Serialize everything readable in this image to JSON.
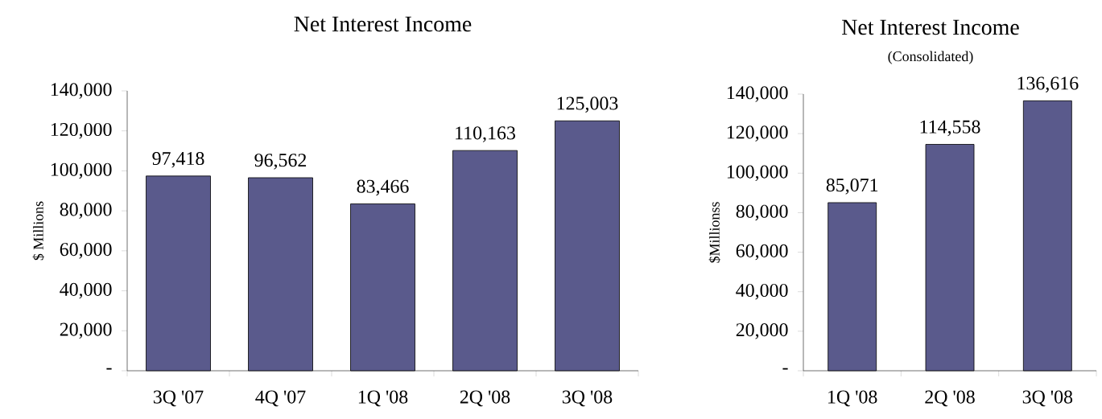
{
  "chart_data": [
    {
      "type": "bar",
      "title": "Net Interest Income",
      "ylabel": "$ Millions",
      "categories": [
        "3Q '07",
        "4Q '07",
        "1Q '08",
        "2Q '08",
        "3Q '08"
      ],
      "values": [
        97418,
        96562,
        83466,
        110163,
        125003
      ],
      "value_labels": [
        "97,418",
        "96,562",
        "83,466",
        "110,163",
        "125,003"
      ],
      "color": "#5a5a8c",
      "ylim": [
        0,
        140000
      ],
      "yticks": [
        {
          "value": 0,
          "label": "-"
        },
        {
          "value": 20000,
          "label": "20,000"
        },
        {
          "value": 40000,
          "label": "40,000"
        },
        {
          "value": 60000,
          "label": "60,000"
        },
        {
          "value": 80000,
          "label": "80,000"
        },
        {
          "value": 100000,
          "label": "100,000"
        },
        {
          "value": 120000,
          "label": "120,000"
        },
        {
          "value": 140000,
          "label": "140,000"
        }
      ]
    },
    {
      "type": "bar",
      "title": "Net Interest Income",
      "subtitle": "(Consolidated)",
      "ylabel": "$Millionss",
      "categories": [
        "1Q '08",
        "2Q '08",
        "3Q '08"
      ],
      "values": [
        85071,
        114558,
        136616
      ],
      "value_labels": [
        "85,071",
        "114,558",
        "136,616"
      ],
      "color": "#5a5a8c",
      "ylim": [
        0,
        140000
      ],
      "yticks": [
        {
          "value": 0,
          "label": "-"
        },
        {
          "value": 20000,
          "label": "20,000"
        },
        {
          "value": 40000,
          "label": "40,000"
        },
        {
          "value": 60000,
          "label": "60,000"
        },
        {
          "value": 80000,
          "label": "80,000"
        },
        {
          "value": 100000,
          "label": "100,000"
        },
        {
          "value": 120000,
          "label": "120,000"
        },
        {
          "value": 140000,
          "label": "140,000"
        }
      ]
    }
  ]
}
